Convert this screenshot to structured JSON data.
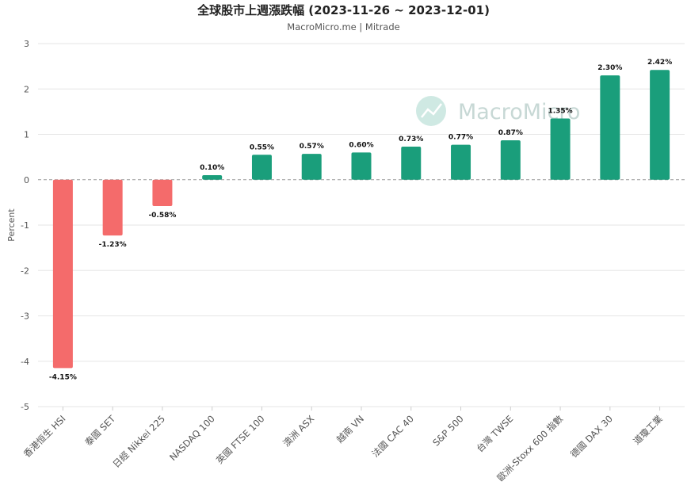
{
  "chart_data": {
    "type": "bar",
    "title": "全球股市上週漲跌幅 (2023-11-26 ~ 2023-12-01)",
    "subtitle": "MacroMicro.me | Mitrade",
    "ylabel": "Percent",
    "ylim": [
      -5,
      3
    ],
    "yticks": [
      3,
      2,
      1,
      0,
      -1,
      -2,
      -3,
      -4,
      -5
    ],
    "grid": true,
    "categories": [
      "香港恒生 HSI",
      "泰國 SET",
      "日經 Nikkei 225",
      "NASDAQ 100",
      "英國 FTSE 100",
      "澳洲 ASX",
      "越南 VN",
      "法國 CAC 40",
      "S&P 500",
      "台灣 TWSE",
      "歐洲-Stoxx 600 指數",
      "德國 DAX 30",
      "道瓊工業"
    ],
    "values": [
      -4.15,
      -1.23,
      -0.58,
      0.1,
      0.55,
      0.57,
      0.6,
      0.73,
      0.77,
      0.87,
      1.35,
      2.3,
      2.42
    ],
    "data_labels": [
      "-4.15%",
      "-1.23%",
      "-0.58%",
      "0.10%",
      "0.55%",
      "0.57%",
      "0.60%",
      "0.73%",
      "0.77%",
      "0.87%",
      "1.35%",
      "2.30%",
      "2.42%"
    ],
    "colors": {
      "positive": "#1a9e7b",
      "negative": "#f46b6b",
      "zero_line": "#999999",
      "grid": "#e6e6e6"
    },
    "watermark": "MacroMicro"
  }
}
